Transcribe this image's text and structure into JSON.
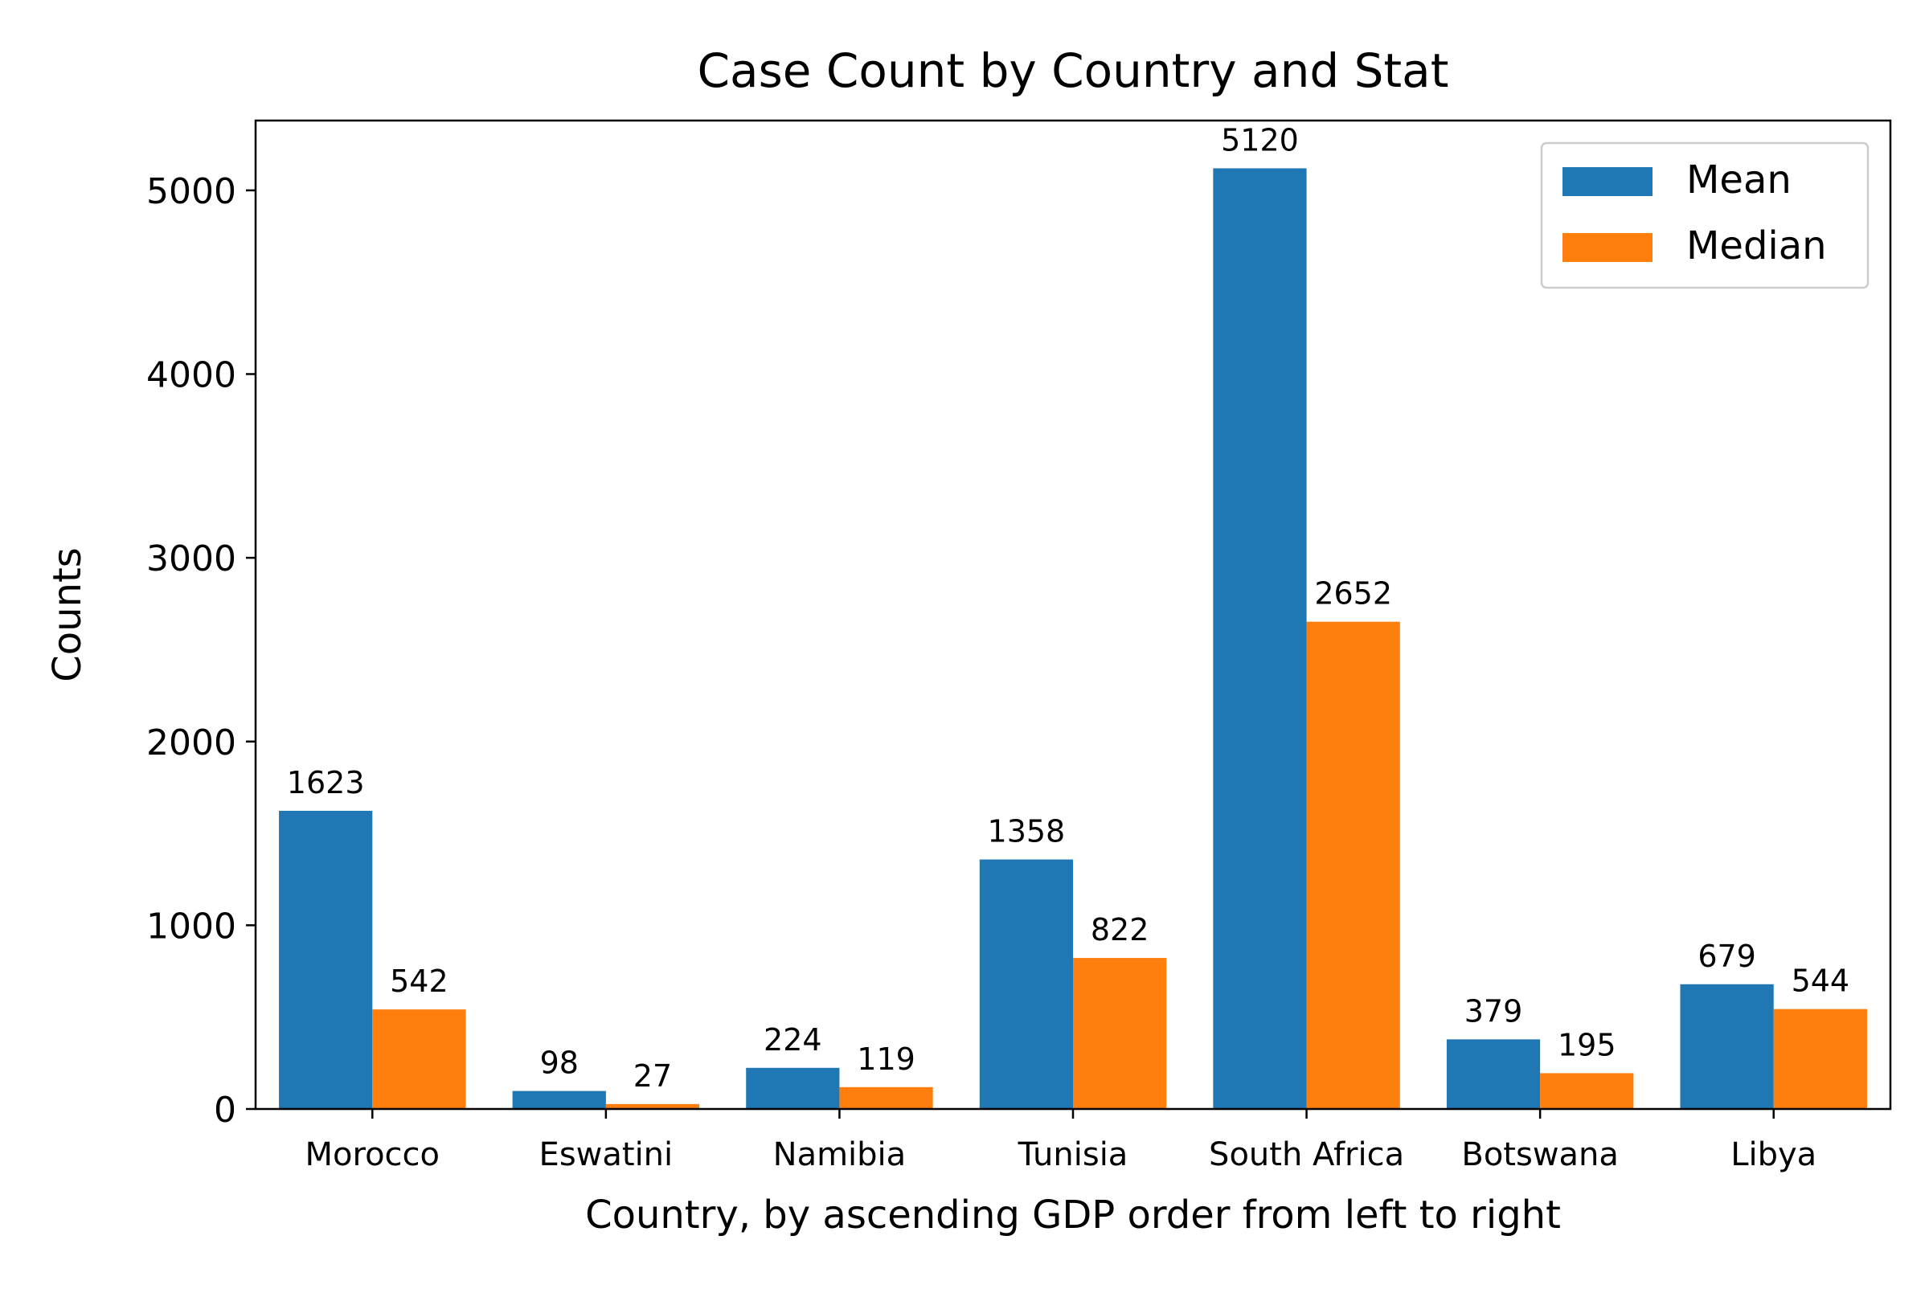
{
  "chart_data": {
    "type": "bar",
    "title": "Case Count by Country and Stat",
    "xlabel": "Country, by ascending GDP order from left to right",
    "ylabel": "Counts",
    "categories": [
      "Morocco",
      "Eswatini",
      "Namibia",
      "Tunisia",
      "South Africa",
      "Botswana",
      "Libya"
    ],
    "series": [
      {
        "name": "Mean",
        "color": "#1f77b4",
        "values": [
          1623,
          98,
          224,
          1358,
          5120,
          379,
          679
        ]
      },
      {
        "name": "Median",
        "color": "#ff7f0e",
        "values": [
          542,
          27,
          119,
          822,
          2652,
          195,
          544
        ]
      }
    ],
    "ylim": [
      0,
      5380
    ],
    "yticks": [
      0,
      1000,
      2000,
      3000,
      4000,
      5000
    ],
    "grid": false,
    "legend": "top-right",
    "data_labels": true
  }
}
